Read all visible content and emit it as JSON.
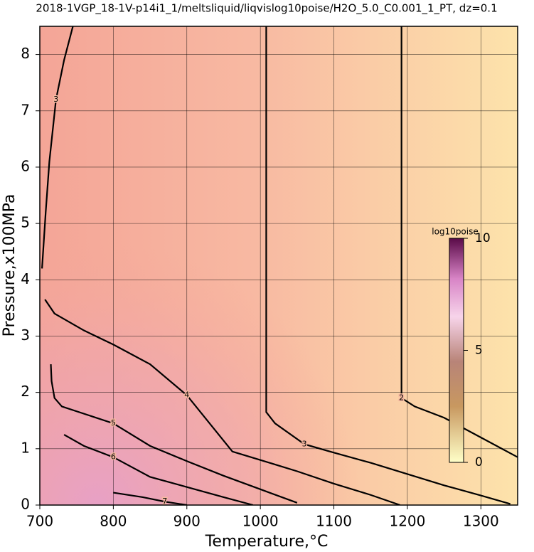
{
  "chart_data": {
    "type": "contour",
    "title": "2018-1VGP_18-1V-p14i1_1/meltsliquid/liqvislog10poise/H2O_5.0_C0.001_1_PT, dz=0.1",
    "x_label": "Temperature,°C",
    "y_label": "Pressure,x100MPa",
    "xlim": [
      700,
      1350
    ],
    "ylim": [
      0,
      8.5
    ],
    "xticks": [
      700,
      800,
      900,
      1000,
      1100,
      1200,
      1300
    ],
    "yticks": [
      0,
      1,
      2,
      3,
      4,
      5,
      6,
      7,
      8
    ],
    "grid": true,
    "line_color": "#000000",
    "contours": [
      {
        "level": 2,
        "x": [
          1192,
          1192,
          1192,
          1210,
          1250,
          1300,
          1350
        ],
        "y": [
          8.5,
          5.5,
          1.9,
          1.75,
          1.55,
          1.2,
          0.85
        ]
      },
      {
        "level": 3,
        "x": [
          1008,
          1008,
          1008,
          1020,
          1060,
          1100,
          1150,
          1200,
          1250,
          1300,
          1340
        ],
        "y": [
          8.5,
          4.5,
          1.65,
          1.45,
          1.08,
          0.93,
          0.75,
          0.55,
          0.35,
          0.17,
          0.02
        ]
      },
      {
        "level": 3,
        "x": [
          745,
          733,
          722,
          713,
          708,
          705,
          703
        ],
        "y": [
          8.5,
          7.9,
          7.2,
          6.1,
          5.2,
          4.6,
          4.2
        ]
      },
      {
        "level": 4,
        "x": [
          707,
          720,
          760,
          800,
          850,
          900,
          962,
          1000,
          1050,
          1100,
          1150,
          1190
        ],
        "y": [
          3.65,
          3.4,
          3.1,
          2.85,
          2.5,
          1.95,
          0.95,
          0.8,
          0.6,
          0.38,
          0.18,
          0.0
        ]
      },
      {
        "level": 5,
        "x": [
          715,
          716,
          720,
          730,
          800,
          850,
          900,
          950,
          1000,
          1050
        ],
        "y": [
          2.5,
          2.2,
          1.9,
          1.75,
          1.45,
          1.05,
          0.78,
          0.52,
          0.28,
          0.04
        ]
      },
      {
        "level": 6,
        "x": [
          733,
          760,
          800,
          850,
          900,
          950,
          990
        ],
        "y": [
          1.25,
          1.05,
          0.85,
          0.5,
          0.32,
          0.14,
          0.0
        ]
      },
      {
        "level": 7,
        "x": [
          800,
          840,
          870,
          900
        ],
        "y": [
          0.22,
          0.14,
          0.06,
          0.0
        ]
      }
    ],
    "colorbar": {
      "label": "log10poise",
      "lim": [
        0,
        10
      ],
      "ticks": [
        0,
        5,
        10
      ]
    }
  }
}
